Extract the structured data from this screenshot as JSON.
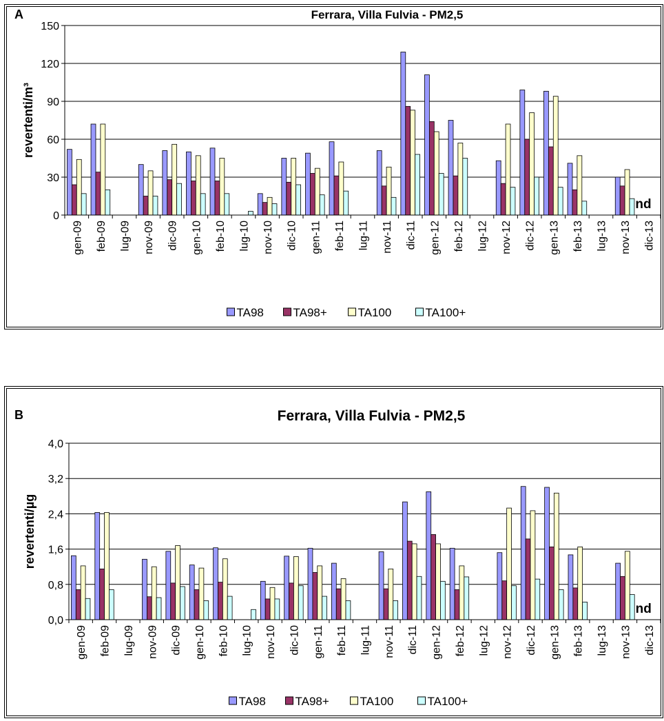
{
  "series_colors": [
    "#9999ff",
    "#993366",
    "#ffffcc",
    "#ccffff"
  ],
  "chart_data": [
    {
      "type": "bar",
      "panel_letter": "A",
      "title": "Ferrara, Villa Fulvia - PM2,5",
      "xlabel": "",
      "ylabel": "revertenti/m³",
      "ylim": [
        0,
        150
      ],
      "yticks": [
        "0",
        "30",
        "60",
        "90",
        "120",
        "150"
      ],
      "grid": true,
      "legend_position": "bottom",
      "annotation": "nd",
      "categories": [
        "gen-09",
        "feb-09",
        "lug-09",
        "nov-09",
        "dic-09",
        "gen-10",
        "feb-10",
        "lug-10",
        "nov-10",
        "dic-10",
        "gen-11",
        "feb-11",
        "lug-11",
        "nov-11",
        "dic-11",
        "gen-12",
        "feb-12",
        "lug-12",
        "nov-12",
        "dic-12",
        "gen-13",
        "feb-13",
        "lug-13",
        "nov-13",
        "dic-13"
      ],
      "series": [
        {
          "name": "TA98",
          "values": [
            52,
            72,
            0,
            40,
            51,
            50,
            53,
            0,
            17,
            45,
            49,
            58,
            0,
            51,
            129,
            111,
            75,
            0,
            43,
            99,
            98,
            41,
            0,
            30,
            0
          ]
        },
        {
          "name": "TA98+",
          "values": [
            24,
            34,
            0,
            15,
            28,
            27,
            27,
            0,
            10,
            26,
            33,
            31,
            0,
            23,
            86,
            74,
            31,
            0,
            25,
            60,
            54,
            20,
            0,
            23,
            0
          ]
        },
        {
          "name": "TA100",
          "values": [
            44,
            72,
            0,
            35,
            56,
            47,
            45,
            0,
            14,
            45,
            37,
            42,
            0,
            38,
            83,
            66,
            57,
            0,
            72,
            81,
            94,
            47,
            0,
            36,
            0
          ]
        },
        {
          "name": "TA100+",
          "values": [
            17,
            20,
            0,
            15,
            25,
            17,
            17,
            3,
            9,
            24,
            16,
            19,
            0,
            14,
            48,
            33,
            45,
            0,
            22,
            30,
            22,
            11,
            0,
            13,
            0
          ]
        }
      ]
    },
    {
      "type": "bar",
      "panel_letter": "B",
      "title": "Ferrara, Villa Fulvia - PM2,5",
      "xlabel": "",
      "ylabel": "revertenti/µg",
      "ylim": [
        0,
        4.0
      ],
      "yticks": [
        "0,0",
        "0,8",
        "1,6",
        "2,4",
        "3,2",
        "4,0"
      ],
      "grid": true,
      "legend_position": "bottom",
      "annotation": "nd",
      "categories": [
        "gen-09",
        "feb-09",
        "lug-09",
        "nov-09",
        "dic-09",
        "gen-10",
        "feb-10",
        "lug-10",
        "nov-10",
        "dic-10",
        "gen-11",
        "feb-11",
        "lug-11",
        "nov-11",
        "dic-11",
        "gen-12",
        "feb-12",
        "lug-12",
        "nov-12",
        "dic-12",
        "gen-13",
        "feb-13",
        "lug-13",
        "nov-13",
        "dic-13"
      ],
      "series": [
        {
          "name": "TA98",
          "values": [
            1.45,
            2.43,
            0,
            1.37,
            1.55,
            1.24,
            1.63,
            0,
            0.87,
            1.44,
            1.62,
            1.28,
            0,
            1.54,
            2.67,
            2.9,
            1.62,
            0,
            1.52,
            3.02,
            3.0,
            1.47,
            0,
            1.28,
            0
          ]
        },
        {
          "name": "TA98+",
          "values": [
            0.68,
            1.15,
            0,
            0.52,
            0.83,
            0.68,
            0.85,
            0,
            0.47,
            0.83,
            1.07,
            0.7,
            0,
            0.7,
            1.78,
            1.93,
            0.68,
            0,
            0.88,
            1.83,
            1.65,
            0.72,
            0,
            0.98,
            0
          ]
        },
        {
          "name": "TA100",
          "values": [
            1.22,
            2.43,
            0,
            1.2,
            1.68,
            1.17,
            1.38,
            0,
            0.73,
            1.43,
            1.22,
            0.93,
            0,
            1.15,
            1.72,
            1.72,
            1.22,
            0,
            2.53,
            2.47,
            2.87,
            1.65,
            0,
            1.55,
            0
          ]
        },
        {
          "name": "TA100+",
          "values": [
            0.48,
            0.68,
            0,
            0.5,
            0.75,
            0.43,
            0.53,
            0.23,
            0.47,
            0.77,
            0.53,
            0.43,
            0,
            0.43,
            0.98,
            0.87,
            0.97,
            0,
            0.77,
            0.92,
            0.68,
            0.4,
            0,
            0.57,
            0
          ]
        }
      ]
    }
  ]
}
